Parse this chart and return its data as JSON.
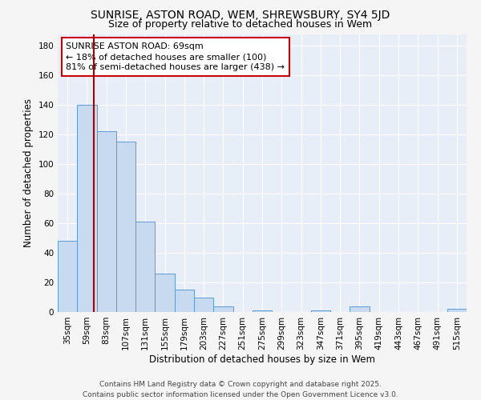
{
  "title": "SUNRISE, ASTON ROAD, WEM, SHREWSBURY, SY4 5JD",
  "subtitle": "Size of property relative to detached houses in Wem",
  "xlabel": "Distribution of detached houses by size in Wem",
  "ylabel": "Number of detached properties",
  "bar_labels": [
    "35sqm",
    "59sqm",
    "83sqm",
    "107sqm",
    "131sqm",
    "155sqm",
    "179sqm",
    "203sqm",
    "227sqm",
    "251sqm",
    "275sqm",
    "299sqm",
    "323sqm",
    "347sqm",
    "371sqm",
    "395sqm",
    "419sqm",
    "443sqm",
    "467sqm",
    "491sqm",
    "515sqm"
  ],
  "bar_values": [
    48,
    140,
    122,
    115,
    61,
    26,
    15,
    10,
    4,
    0,
    1,
    0,
    0,
    1,
    0,
    4,
    0,
    0,
    0,
    0,
    2
  ],
  "bar_color": "#c8daf0",
  "bar_edge_color": "#5b9bd5",
  "vline_x": 1.35,
  "vline_color": "#aa0000",
  "ylim": [
    0,
    188
  ],
  "yticks": [
    0,
    20,
    40,
    60,
    80,
    100,
    120,
    140,
    160,
    180
  ],
  "annotation_title": "SUNRISE ASTON ROAD: 69sqm",
  "annotation_line1": "← 18% of detached houses are smaller (100)",
  "annotation_line2": "81% of semi-detached houses are larger (438) →",
  "annotation_box_facecolor": "#ffffff",
  "annotation_box_edgecolor": "#cc0000",
  "footer_line1": "Contains HM Land Registry data © Crown copyright and database right 2025.",
  "footer_line2": "Contains public sector information licensed under the Open Government Licence v3.0.",
  "plot_bg_color": "#e8eef8",
  "fig_bg_color": "#f5f5f5",
  "grid_color": "#ffffff",
  "title_fontsize": 10,
  "subtitle_fontsize": 9,
  "axis_label_fontsize": 8.5,
  "tick_fontsize": 7.5,
  "annotation_fontsize": 8,
  "footer_fontsize": 6.5
}
